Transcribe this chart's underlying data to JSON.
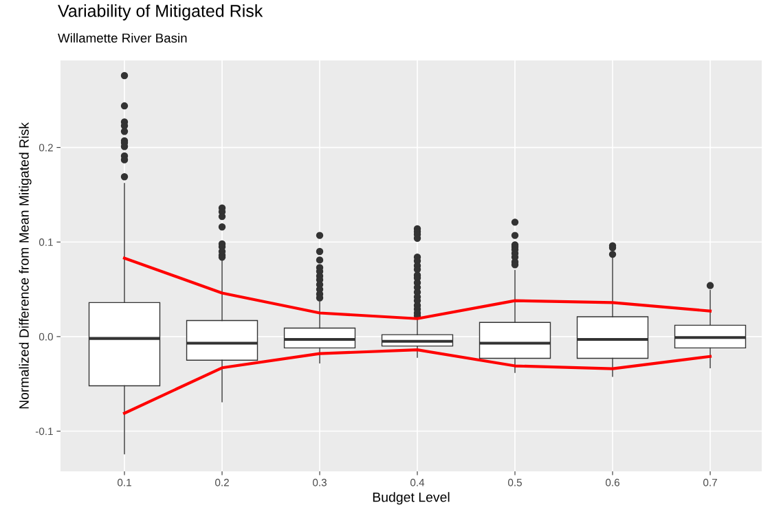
{
  "chart_data": {
    "type": "box",
    "title": "Variability of Mitigated Risk",
    "subtitle": "Willamette River Basin",
    "xlabel": "Budget Level",
    "ylabel": "Normalized Difference from Mean Mitigated Risk",
    "x": [
      0.1,
      0.2,
      0.3,
      0.4,
      0.5,
      0.6,
      0.7
    ],
    "boxes": [
      {
        "low": -0.124,
        "q1": -0.052,
        "median": -0.002,
        "q3": 0.036,
        "high": 0.162,
        "outliers": [
          0.276,
          0.244,
          0.227,
          0.223,
          0.217,
          0.207,
          0.205,
          0.201,
          0.191,
          0.187,
          0.169
        ]
      },
      {
        "low": -0.069,
        "q1": -0.025,
        "median": -0.007,
        "q3": 0.017,
        "high": 0.082,
        "outliers": [
          0.136,
          0.132,
          0.127,
          0.116,
          0.098,
          0.095,
          0.09,
          0.086,
          0.084
        ]
      },
      {
        "low": -0.028,
        "q1": -0.012,
        "median": -0.003,
        "q3": 0.009,
        "high": 0.037,
        "outliers": [
          0.107,
          0.09,
          0.081,
          0.073,
          0.069,
          0.064,
          0.06,
          0.055,
          0.05,
          0.045,
          0.041
        ]
      },
      {
        "low": -0.022,
        "q1": -0.01,
        "median": -0.005,
        "q3": 0.002,
        "high": 0.02,
        "outliers": [
          0.114,
          0.111,
          0.108,
          0.104,
          0.084,
          0.08,
          0.075,
          0.071,
          0.065,
          0.062,
          0.057,
          0.052,
          0.047,
          0.042,
          0.038,
          0.033,
          0.029,
          0.025,
          0.022
        ]
      },
      {
        "low": -0.038,
        "q1": -0.023,
        "median": -0.007,
        "q3": 0.015,
        "high": 0.07,
        "outliers": [
          0.121,
          0.107,
          0.097,
          0.095,
          0.092,
          0.088,
          0.084,
          0.079,
          0.076
        ]
      },
      {
        "low": -0.042,
        "q1": -0.023,
        "median": -0.003,
        "q3": 0.021,
        "high": 0.084,
        "outliers": [
          0.096,
          0.094,
          0.087
        ]
      },
      {
        "low": -0.033,
        "q1": -0.012,
        "median": -0.001,
        "q3": 0.012,
        "high": 0.049,
        "outliers": [
          0.054
        ]
      }
    ],
    "series": [
      {
        "type": "line",
        "color": "#ff0000",
        "marker": "none",
        "x": [
          0.1,
          0.2,
          0.3,
          0.4,
          0.5,
          0.6,
          0.7
        ],
        "values": [
          0.083,
          0.046,
          0.025,
          0.019,
          0.038,
          0.036,
          0.027
        ]
      },
      {
        "type": "line",
        "color": "#ff0000",
        "marker": "none",
        "x": [
          0.1,
          0.2,
          0.3,
          0.4,
          0.5,
          0.6,
          0.7
        ],
        "values": [
          -0.081,
          -0.033,
          -0.018,
          -0.014,
          -0.031,
          -0.034,
          -0.021
        ]
      }
    ],
    "xlim": [
      0.0345,
      0.7528
    ],
    "xticks": [
      0.1,
      0.2,
      0.3,
      0.4,
      0.5,
      0.6,
      0.7
    ],
    "ylim": [
      -0.1425,
      0.292
    ],
    "yticks": [
      -0.1,
      {
        "value": 0.0,
        "label": "0.0"
      },
      0.1,
      0.2
    ],
    "grid": true,
    "marker": "circle"
  }
}
